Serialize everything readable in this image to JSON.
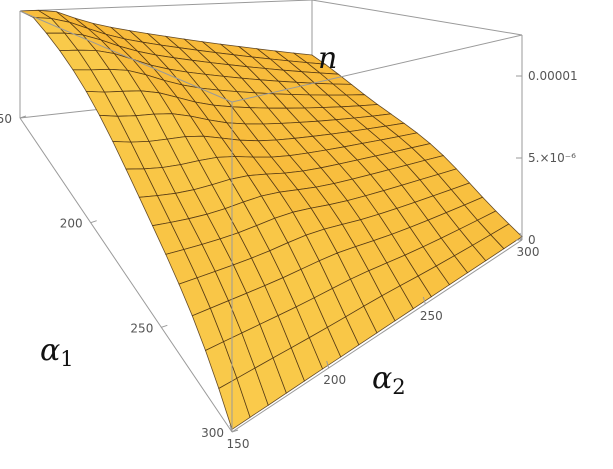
{
  "chart_data": {
    "type": "surface3d",
    "title": "",
    "zlabel": "n",
    "xlabel": "α",
    "xlabel_sub": "1",
    "ylabel": "α",
    "ylabel_sub": "2",
    "x_ticks": [
      "150",
      "200",
      "250",
      "300"
    ],
    "y_ticks": [
      "150",
      "200",
      "250",
      "300"
    ],
    "z_ticks": [
      "0",
      "5.×10⁻⁶",
      "0.00001"
    ],
    "x_range": [
      150,
      300
    ],
    "y_range": [
      150,
      300
    ],
    "z_range": [
      0,
      1.25e-05
    ],
    "grid_lines": 16,
    "corner_values": {
      "alpha1_150_alpha2_150": 1.25e-05,
      "alpha1_150_alpha2_300": 4.5e-06,
      "alpha1_300_alpha2_150": 1e-07,
      "alpha1_300_alpha2_300": 2e-07
    },
    "colors": {
      "surface_light": "#fbd85a",
      "surface_dark": "#f59f1c",
      "mesh": "#4a3010",
      "box": "#9a9a9a"
    }
  }
}
